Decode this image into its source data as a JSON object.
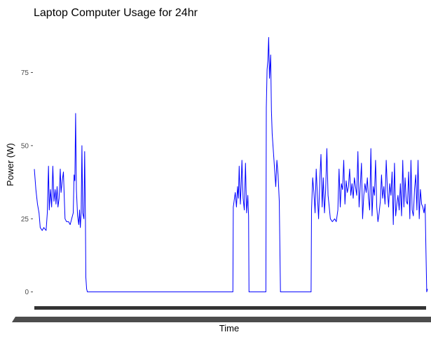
{
  "chart_data": {
    "type": "line",
    "title": "Laptop Computer Usage for 24hr",
    "xlabel": "Time",
    "ylabel": "Power (W)",
    "ylim": [
      -2,
      89
    ],
    "y_ticks": [
      0,
      25,
      50,
      75
    ],
    "grid": false,
    "colors": {
      "line": "#0000ff",
      "axis_text": "#4d4d4d"
    },
    "series": [
      {
        "points": [
          [
            0.0,
            42
          ],
          [
            0.004,
            35
          ],
          [
            0.008,
            30
          ],
          [
            0.012,
            27
          ],
          [
            0.015,
            22
          ],
          [
            0.02,
            21
          ],
          [
            0.024,
            22
          ],
          [
            0.03,
            21
          ],
          [
            0.033,
            27
          ],
          [
            0.036,
            43
          ],
          [
            0.038,
            28
          ],
          [
            0.041,
            35
          ],
          [
            0.044,
            29
          ],
          [
            0.047,
            43
          ],
          [
            0.05,
            31
          ],
          [
            0.053,
            35
          ],
          [
            0.055,
            30
          ],
          [
            0.058,
            36
          ],
          [
            0.06,
            29
          ],
          [
            0.063,
            32
          ],
          [
            0.066,
            42
          ],
          [
            0.068,
            34
          ],
          [
            0.071,
            38
          ],
          [
            0.074,
            41
          ],
          [
            0.076,
            33
          ],
          [
            0.078,
            25
          ],
          [
            0.082,
            24
          ],
          [
            0.087,
            24
          ],
          [
            0.091,
            23
          ],
          [
            0.095,
            25
          ],
          [
            0.099,
            27
          ],
          [
            0.101,
            40
          ],
          [
            0.103,
            38
          ],
          [
            0.105,
            61
          ],
          [
            0.107,
            35
          ],
          [
            0.11,
            26
          ],
          [
            0.113,
            23
          ],
          [
            0.115,
            28
          ],
          [
            0.117,
            22
          ],
          [
            0.119,
            27
          ],
          [
            0.121,
            50
          ],
          [
            0.123,
            27
          ],
          [
            0.126,
            25
          ],
          [
            0.128,
            48
          ],
          [
            0.13,
            25
          ],
          [
            0.131,
            5
          ],
          [
            0.133,
            1
          ],
          [
            0.135,
            0
          ],
          [
            0.2,
            0
          ],
          [
            0.3,
            0
          ],
          [
            0.4,
            0
          ],
          [
            0.5,
            0
          ],
          [
            0.505,
            0
          ],
          [
            0.506,
            29
          ],
          [
            0.508,
            31
          ],
          [
            0.511,
            34
          ],
          [
            0.514,
            29
          ],
          [
            0.517,
            36
          ],
          [
            0.519,
            32
          ],
          [
            0.521,
            43
          ],
          [
            0.524,
            30
          ],
          [
            0.526,
            36
          ],
          [
            0.528,
            45
          ],
          [
            0.531,
            32
          ],
          [
            0.534,
            28
          ],
          [
            0.537,
            44
          ],
          [
            0.54,
            27
          ],
          [
            0.543,
            33
          ],
          [
            0.545,
            26
          ],
          [
            0.546,
            0
          ],
          [
            0.58,
            0
          ],
          [
            0.589,
            0
          ],
          [
            0.59,
            63
          ],
          [
            0.592,
            76
          ],
          [
            0.594,
            79
          ],
          [
            0.596,
            87
          ],
          [
            0.598,
            73
          ],
          [
            0.601,
            81
          ],
          [
            0.603,
            62
          ],
          [
            0.605,
            54
          ],
          [
            0.608,
            48
          ],
          [
            0.611,
            42
          ],
          [
            0.614,
            36
          ],
          [
            0.617,
            45
          ],
          [
            0.62,
            40
          ],
          [
            0.623,
            31
          ],
          [
            0.626,
            0
          ],
          [
            0.7,
            0
          ],
          [
            0.704,
            0
          ],
          [
            0.705,
            28
          ],
          [
            0.708,
            39
          ],
          [
            0.711,
            34
          ],
          [
            0.714,
            27
          ],
          [
            0.717,
            42
          ],
          [
            0.72,
            33
          ],
          [
            0.723,
            25
          ],
          [
            0.726,
            38
          ],
          [
            0.729,
            47
          ],
          [
            0.732,
            29
          ],
          [
            0.735,
            39
          ],
          [
            0.738,
            27
          ],
          [
            0.741,
            35
          ],
          [
            0.744,
            49
          ],
          [
            0.747,
            33
          ],
          [
            0.75,
            29
          ],
          [
            0.753,
            25
          ],
          [
            0.758,
            24
          ],
          [
            0.764,
            25
          ],
          [
            0.768,
            24
          ],
          [
            0.772,
            28
          ],
          [
            0.775,
            42
          ],
          [
            0.778,
            29
          ],
          [
            0.781,
            37
          ],
          [
            0.784,
            35
          ],
          [
            0.787,
            45
          ],
          [
            0.79,
            30
          ],
          [
            0.793,
            38
          ],
          [
            0.796,
            34
          ],
          [
            0.799,
            36
          ],
          [
            0.802,
            42
          ],
          [
            0.805,
            33
          ],
          [
            0.808,
            37
          ],
          [
            0.811,
            32
          ],
          [
            0.814,
            39
          ],
          [
            0.817,
            36
          ],
          [
            0.82,
            33
          ],
          [
            0.823,
            48
          ],
          [
            0.826,
            29
          ],
          [
            0.829,
            36
          ],
          [
            0.832,
            44
          ],
          [
            0.835,
            25
          ],
          [
            0.838,
            33
          ],
          [
            0.841,
            37
          ],
          [
            0.844,
            34
          ],
          [
            0.847,
            39
          ],
          [
            0.85,
            32
          ],
          [
            0.853,
            28
          ],
          [
            0.856,
            49
          ],
          [
            0.859,
            26
          ],
          [
            0.862,
            36
          ],
          [
            0.865,
            33
          ],
          [
            0.868,
            45
          ],
          [
            0.871,
            29
          ],
          [
            0.874,
            24
          ],
          [
            0.877,
            27
          ],
          [
            0.88,
            31
          ],
          [
            0.883,
            40
          ],
          [
            0.886,
            32
          ],
          [
            0.889,
            36
          ],
          [
            0.892,
            30
          ],
          [
            0.895,
            45
          ],
          [
            0.898,
            35
          ],
          [
            0.901,
            29
          ],
          [
            0.904,
            37
          ],
          [
            0.907,
            33
          ],
          [
            0.91,
            41
          ],
          [
            0.913,
            23
          ],
          [
            0.916,
            44
          ],
          [
            0.919,
            26
          ],
          [
            0.922,
            30
          ],
          [
            0.925,
            33
          ],
          [
            0.928,
            28
          ],
          [
            0.931,
            37
          ],
          [
            0.934,
            26
          ],
          [
            0.937,
            45
          ],
          [
            0.94,
            29
          ],
          [
            0.943,
            39
          ],
          [
            0.946,
            31
          ],
          [
            0.949,
            30
          ],
          [
            0.952,
            41
          ],
          [
            0.955,
            25
          ],
          [
            0.958,
            45
          ],
          [
            0.961,
            28
          ],
          [
            0.964,
            26
          ],
          [
            0.967,
            35
          ],
          [
            0.97,
            40
          ],
          [
            0.973,
            28
          ],
          [
            0.976,
            45
          ],
          [
            0.979,
            25
          ],
          [
            0.982,
            35
          ],
          [
            0.985,
            30
          ],
          [
            0.988,
            29
          ],
          [
            0.991,
            27
          ],
          [
            0.994,
            30
          ],
          [
            0.996,
            14
          ],
          [
            0.998,
            0
          ],
          [
            1.0,
            1
          ]
        ]
      }
    ]
  }
}
